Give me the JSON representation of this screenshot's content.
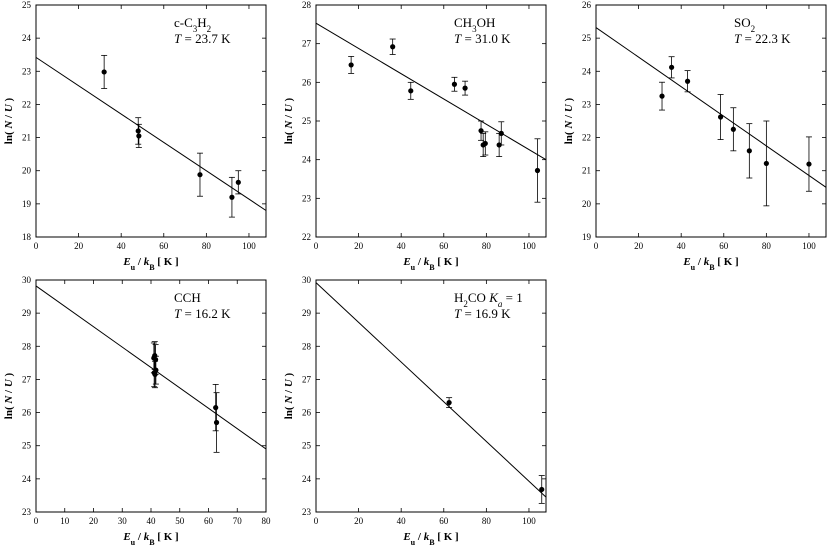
{
  "chart_data": [
    {
      "type": "scatter",
      "species": "c-C",
      "species_sub": "3",
      "species_mid": "H",
      "species_sub2": "2",
      "temperature": "T = 23.7 K",
      "xlabel": "Eu / kB [ K ]",
      "ylabel": "ln( N / U )",
      "xlim": [
        0,
        108
      ],
      "ylim": [
        18,
        25
      ],
      "xticks": [
        0,
        20,
        40,
        60,
        80,
        100
      ],
      "yticks": [
        18,
        19,
        20,
        21,
        22,
        23,
        24,
        25
      ],
      "fit": {
        "x0": 0,
        "y0": 23.42,
        "x1": 108,
        "y1": 18.8
      },
      "points": [
        {
          "x": 32,
          "y": 22.98,
          "err": 0.5
        },
        {
          "x": 48,
          "y": 21.2,
          "err": 0.4
        },
        {
          "x": 48.3,
          "y": 21.05,
          "err": 0.35
        },
        {
          "x": 77,
          "y": 19.88,
          "err": 0.65
        },
        {
          "x": 92,
          "y": 19.2,
          "err": 0.6
        },
        {
          "x": 95,
          "y": 19.65,
          "err": 0.35
        }
      ]
    },
    {
      "type": "scatter",
      "species": "CH",
      "species_sub": "3",
      "species_mid": "OH",
      "species_sub2": "",
      "temperature": "T = 31.0 K",
      "xlabel": "Eu / kB [ K ]",
      "ylabel": "ln( N / U )",
      "xlim": [
        0,
        108
      ],
      "ylim": [
        22,
        28
      ],
      "xticks": [
        0,
        20,
        40,
        60,
        80,
        100
      ],
      "yticks": [
        22,
        23,
        24,
        25,
        26,
        27,
        28
      ],
      "fit": {
        "x0": 0,
        "y0": 27.53,
        "x1": 108,
        "y1": 24.0
      },
      "points": [
        {
          "x": 16.5,
          "y": 26.45,
          "err": 0.22
        },
        {
          "x": 36,
          "y": 26.92,
          "err": 0.2
        },
        {
          "x": 44.5,
          "y": 25.78,
          "err": 0.22
        },
        {
          "x": 65,
          "y": 25.95,
          "err": 0.18
        },
        {
          "x": 70,
          "y": 25.85,
          "err": 0.18
        },
        {
          "x": 77.5,
          "y": 24.75,
          "err": 0.25
        },
        {
          "x": 78.5,
          "y": 24.38,
          "err": 0.3
        },
        {
          "x": 79.5,
          "y": 24.42,
          "err": 0.3
        },
        {
          "x": 86,
          "y": 24.38,
          "err": 0.3
        },
        {
          "x": 87,
          "y": 24.68,
          "err": 0.3
        },
        {
          "x": 104,
          "y": 23.72,
          "err": 0.82
        }
      ]
    },
    {
      "type": "scatter",
      "species": "SO",
      "species_sub": "2",
      "species_mid": "",
      "species_sub2": "",
      "temperature": "T = 22.3 K",
      "xlabel": "Eu / kB [ K ]",
      "ylabel": "ln( N / U )",
      "xlim": [
        0,
        108
      ],
      "ylim": [
        19,
        26
      ],
      "xticks": [
        0,
        20,
        40,
        60,
        80,
        100
      ],
      "yticks": [
        19,
        20,
        21,
        22,
        23,
        24,
        25,
        26
      ],
      "fit": {
        "x0": 0,
        "y0": 25.32,
        "x1": 108,
        "y1": 20.5
      },
      "points": [
        {
          "x": 31,
          "y": 23.25,
          "err": 0.42
        },
        {
          "x": 35.5,
          "y": 24.12,
          "err": 0.32
        },
        {
          "x": 43,
          "y": 23.7,
          "err": 0.32
        },
        {
          "x": 58.5,
          "y": 22.62,
          "err": 0.68
        },
        {
          "x": 64.5,
          "y": 22.25,
          "err": 0.65
        },
        {
          "x": 72,
          "y": 21.6,
          "err": 0.82
        },
        {
          "x": 80,
          "y": 21.22,
          "err": 1.28
        },
        {
          "x": 100,
          "y": 21.2,
          "err": 0.82
        }
      ]
    },
    {
      "type": "scatter",
      "species": "CCH",
      "species_sub": "",
      "species_mid": "",
      "species_sub2": "",
      "temperature": "T = 16.2 K",
      "xlabel": "Eu / kB [ K ]",
      "ylabel": "ln( N / U )",
      "xlim": [
        0,
        80
      ],
      "ylim": [
        23,
        30
      ],
      "xticks": [
        0,
        10,
        20,
        30,
        40,
        50,
        60,
        70,
        80
      ],
      "yticks": [
        23,
        24,
        25,
        26,
        27,
        28,
        29,
        30
      ],
      "fit": {
        "x0": 0,
        "y0": 29.82,
        "x1": 80,
        "y1": 24.9
      },
      "points": [
        {
          "x": 41,
          "y": 27.65,
          "err": 0.45
        },
        {
          "x": 41.3,
          "y": 27.72,
          "err": 0.42
        },
        {
          "x": 41.6,
          "y": 27.6,
          "err": 0.45
        },
        {
          "x": 41.1,
          "y": 27.2,
          "err": 0.42
        },
        {
          "x": 41.4,
          "y": 27.15,
          "err": 0.4
        },
        {
          "x": 41.7,
          "y": 27.28,
          "err": 0.42
        },
        {
          "x": 62.5,
          "y": 26.15,
          "err": 0.7
        },
        {
          "x": 62.8,
          "y": 25.7,
          "err": 0.9
        }
      ]
    },
    {
      "type": "scatter",
      "species": "H",
      "species_sub": "2",
      "species_mid": "CO K",
      "species_sub2": "a",
      "species_tail": " = 1",
      "temperature": "T = 16.9 K",
      "xlabel": "Eu / kB [ K ]",
      "ylabel": "ln( N / U )",
      "xlim": [
        0,
        108
      ],
      "ylim": [
        23,
        30
      ],
      "xticks": [
        0,
        20,
        40,
        60,
        80,
        100
      ],
      "yticks": [
        23,
        24,
        25,
        26,
        27,
        28,
        29,
        30
      ],
      "fit": {
        "x0": 0,
        "y0": 29.92,
        "x1": 108,
        "y1": 23.45
      },
      "points": [
        {
          "x": 62.5,
          "y": 26.3,
          "err": 0.15
        },
        {
          "x": 106,
          "y": 23.68,
          "err": 0.42
        }
      ]
    }
  ]
}
